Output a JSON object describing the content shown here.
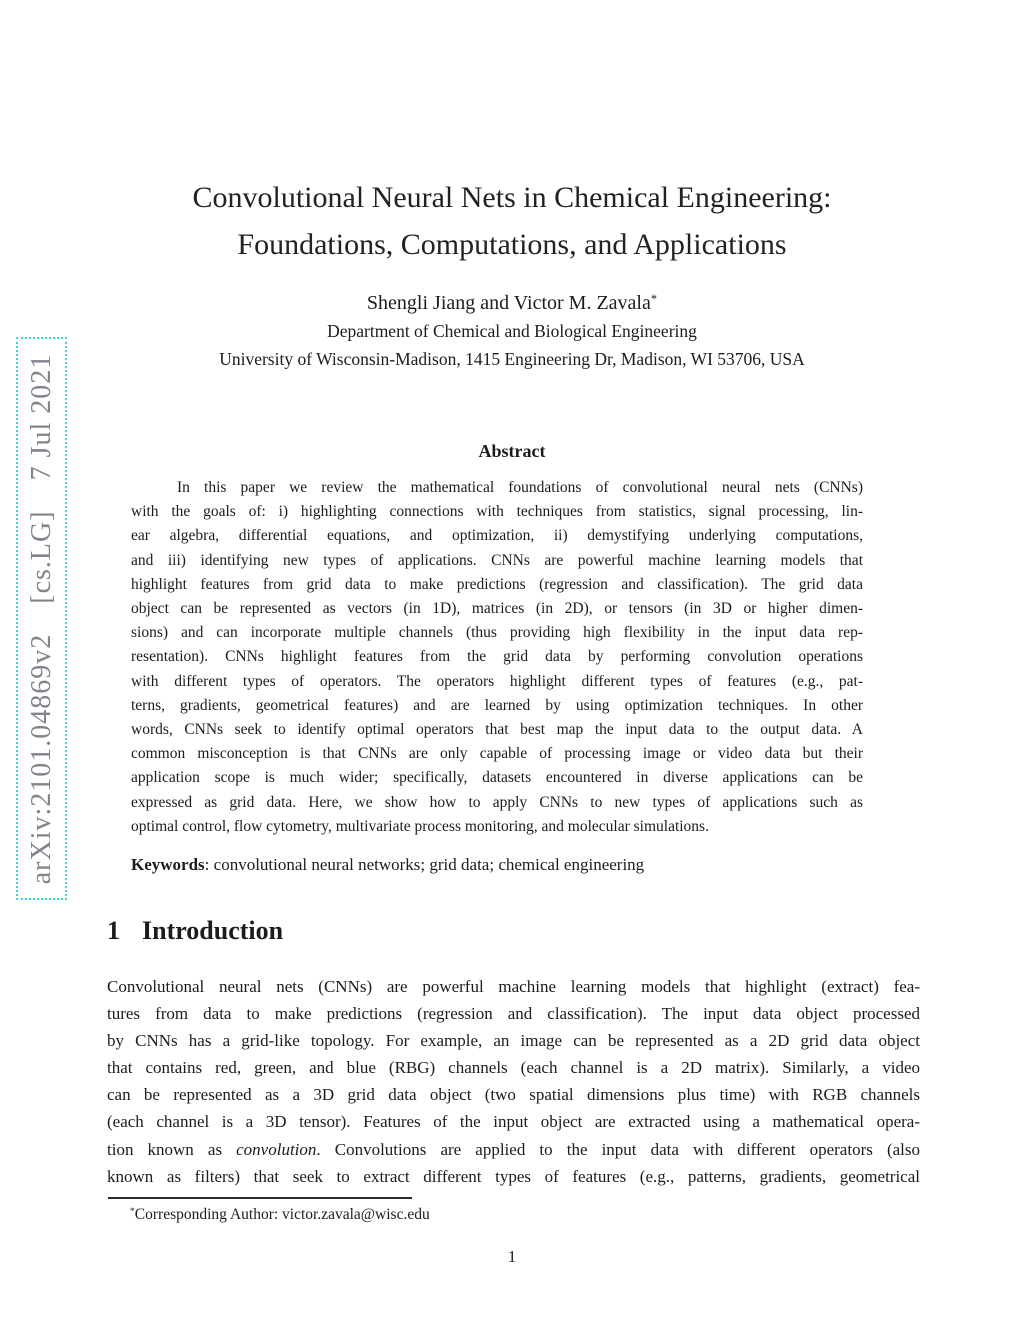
{
  "colors": {
    "stamp_border": "#3bd6d6",
    "stamp_text": "#83838c",
    "body_text": "#1c1c1c"
  },
  "arxiv_stamp": {
    "text": "arXiv:2101.04869v2  [cs.LG]  7 Jul 2021"
  },
  "header": {
    "title_lines": [
      "Convolutional Neural Nets in Chemical Engineering:",
      "Foundations, Computations, and Applications"
    ],
    "authors": "Shengli Jiang and Victor M. Zavala",
    "authors_footnote_marker": "*",
    "affiliations": [
      "Department of Chemical and Biological Engineering",
      "University of Wisconsin-Madison, 1415 Engineering Dr, Madison, WI 53706, USA"
    ]
  },
  "abstract": {
    "heading": "Abstract",
    "lines": [
      "In this paper we review the mathematical foundations of convolutional neural nets (CNNs)",
      "with the goals of: i) highlighting connections with techniques from statistics, signal processing, lin-",
      "ear algebra, differential equations, and optimization, ii) demystifying underlying computations,",
      "and iii) identifying new types of applications. CNNs are powerful machine learning models that",
      "highlight features from grid data to make predictions (regression and classification). The grid data",
      "object can be represented as vectors (in 1D), matrices (in 2D), or tensors (in 3D or higher dimen-",
      "sions) and can incorporate multiple channels (thus providing high flexibility in the input data rep-",
      "resentation). CNNs highlight features from the grid data by performing convolution operations",
      "with different types of operators. The operators highlight different types of features (e.g., pat-",
      "terns, gradients, geometrical features) and are learned by using optimization techniques. In other",
      "words, CNNs seek to identify optimal operators that best map the input data to the output data. A",
      "common misconception is that CNNs are only capable of processing image or video data but their",
      "application scope is much wider; specifically, datasets encountered in diverse applications can be",
      "expressed as grid data. Here, we show how to apply CNNs to new types of applications such as",
      "optimal control, flow cytometry, multivariate process monitoring, and molecular simulations."
    ],
    "keywords_label": "Keywords",
    "keywords_rest": ": convolutional neural networks; grid data; chemical engineering"
  },
  "introduction": {
    "number": "1",
    "title": "Introduction",
    "lines": [
      "Convolutional neural nets (CNNs) are powerful machine learning models that highlight (extract) fea-",
      "tures from data to make predictions (regression and classification). The input data object processed",
      "by CNNs has a grid-like topology. For example, an image can be represented as a 2D grid data object",
      "that contains red, green, and blue (RBG) channels (each channel is a 2D matrix). Similarly, a video",
      "can be represented as a 3D grid data object (two spatial dimensions plus time) with RGB channels",
      "(each channel is a 3D tensor). Features of the input object are extracted using a mathematical opera-",
      [
        {
          "t": "tion known as "
        },
        {
          "t": "convolution",
          "i": true
        },
        {
          "t": ". Convolutions are applied to the input data with different operators (also"
        }
      ],
      "known as filters) that seek to extract different types of features (e.g., patterns, gradients, geometrical"
    ]
  },
  "footnote": {
    "marker": "*",
    "text": "Corresponding Author: victor.zavala@wisc.edu"
  },
  "page": {
    "number": "1"
  }
}
